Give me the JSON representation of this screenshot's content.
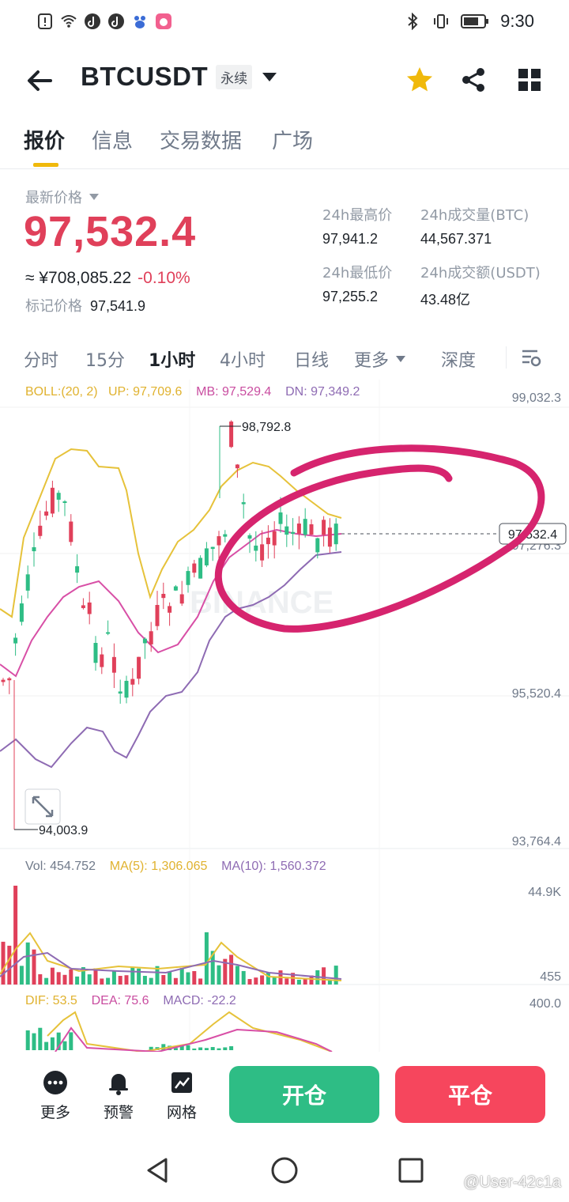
{
  "status_bar": {
    "time": "9:30"
  },
  "header": {
    "title": "BTCUSDT",
    "badge": "永续"
  },
  "tabs": [
    "报价",
    "信息",
    "交易数据",
    "广场"
  ],
  "price": {
    "latest_label": "最新价格",
    "latest": "97,532.4",
    "cny": "≈ ¥708,085.22",
    "change": "-0.10%",
    "mark_label": "标记价格",
    "mark": "97,541.9"
  },
  "stats": {
    "high_label": "24h最高价",
    "high": "97,941.2",
    "vol_btc_label": "24h成交量(BTC)",
    "vol_btc": "44,567.371",
    "low_label": "24h最低价",
    "low": "97,255.2",
    "vol_usdt_label": "24h成交额(USDT)",
    "vol_usdt": "43.48亿"
  },
  "intervals": {
    "items": [
      "分时",
      "15分",
      "1小时",
      "4小时",
      "日线",
      "更多"
    ],
    "active": "1小时",
    "depth": "深度"
  },
  "chart_data": {
    "type": "candlestick",
    "boll": {
      "label": "BOLL:(20, 2)",
      "up": "UP: 97,709.6",
      "mb": "MB: 97,529.4",
      "dn": "DN: 97,349.2"
    },
    "price_axis": [
      "99,032.3",
      "97,276.3",
      "95,520.4",
      "93,764.4"
    ],
    "ylim": [
      93764.4,
      99032.3
    ],
    "last_price_tag": "97,532.4",
    "max_annotation": "98,792.8",
    "min_annotation": "94,003.9",
    "volume": {
      "vol": "Vol: 454.752",
      "ma5": "MA(5): 1,306.065",
      "ma10": "MA(10): 1,560.372",
      "axis_top": "44.9K",
      "axis_bottom": "455"
    },
    "macd": {
      "dif": "DIF: 53.5",
      "dea": "DEA: 75.6",
      "macd": "MACD: -22.2",
      "axis_top": "400.0"
    },
    "watermark": "BINANCE",
    "colors": {
      "up": "#2ebd85",
      "down": "#e0405a",
      "boll_up": "#e6c23a",
      "boll_mb": "#d84fa6",
      "boll_dn": "#8e6bb3",
      "annotation": "#d6246e"
    }
  },
  "actions": {
    "more": "更多",
    "alert": "预警",
    "grid": "网格",
    "open": "开仓",
    "close": "平仓"
  },
  "watermark_user": "@User-42c1a"
}
